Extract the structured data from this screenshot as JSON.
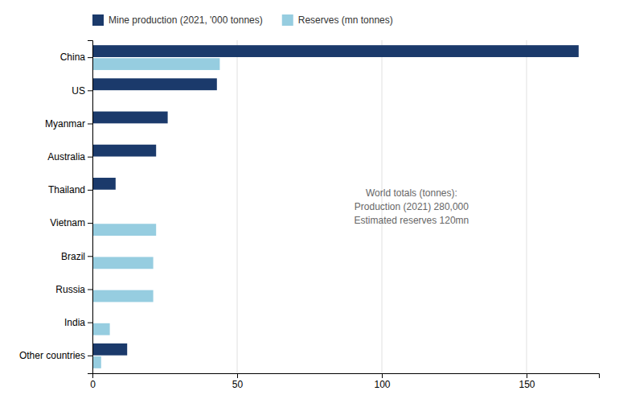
{
  "chart_data": {
    "type": "bar",
    "orientation": "horizontal",
    "categories": [
      "China",
      "US",
      "Myanmar",
      "Australia",
      "Thailand",
      "Vietnam",
      "Brazil",
      "Russia",
      "India",
      "Other countries"
    ],
    "series": [
      {
        "name": "Mine production (2021, '000 tonnes)",
        "color": "#1b3a6b",
        "values": [
          168,
          43,
          26,
          22,
          8,
          0,
          0,
          0,
          0,
          12
        ]
      },
      {
        "name": "Reserves (mn tonnes)",
        "color": "#96cde0",
        "values": [
          44,
          0,
          0,
          0,
          0,
          22,
          21,
          21,
          6,
          3
        ]
      }
    ],
    "xlim": [
      0,
      175
    ],
    "xticks": [
      0,
      50,
      100,
      150
    ],
    "grid": true,
    "legend": "upper left",
    "annotation": "World totals (tonnes):\nProduction (2021) 280,000\nEstimated reserves 120mn"
  }
}
